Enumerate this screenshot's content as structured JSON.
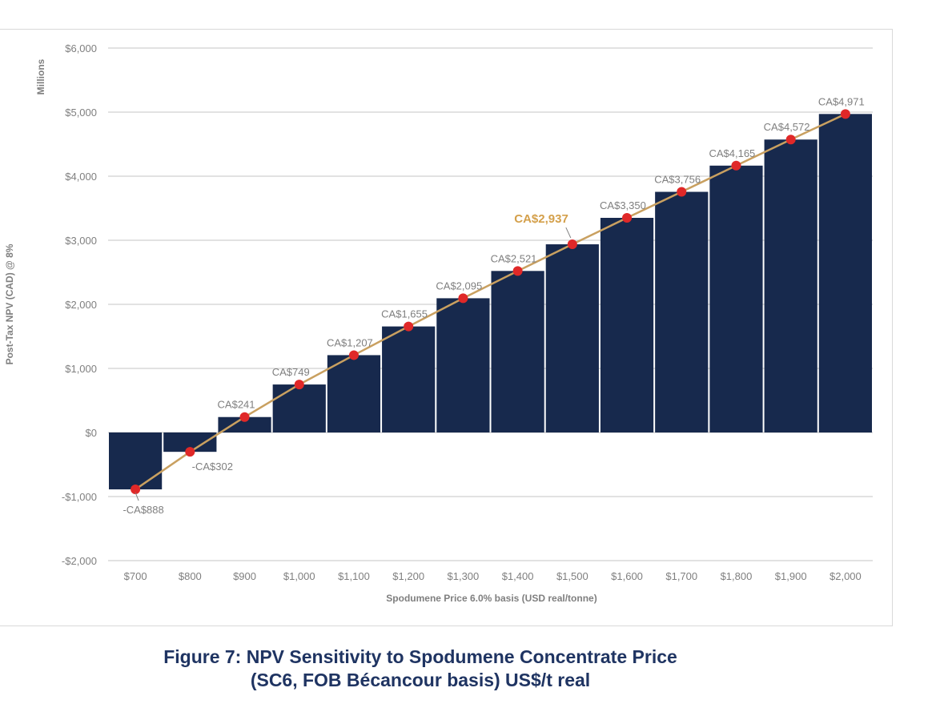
{
  "chart_data": {
    "type": "bar",
    "categories": [
      "$700",
      "$800",
      "$900",
      "$1,000",
      "$1,100",
      "$1,200",
      "$1,300",
      "$1,400",
      "$1,500",
      "$1,600",
      "$1,700",
      "$1,800",
      "$1,900",
      "$2,000"
    ],
    "values": [
      -888,
      -302,
      241,
      749,
      1207,
      1655,
      2095,
      2521,
      2937,
      3350,
      3756,
      4165,
      4572,
      4971
    ],
    "labels": [
      "-CA$888",
      "-CA$302",
      "CA$241",
      "CA$749",
      "CA$1,207",
      "CA$1,655",
      "CA$2,095",
      "CA$2,521",
      "CA$2,937",
      "CA$3,350",
      "CA$3,756",
      "CA$4,165",
      "CA$4,572",
      "CA$4,971"
    ],
    "highlight_index": 8,
    "yticks": [
      -2000,
      -1000,
      0,
      1000,
      2000,
      3000,
      4000,
      5000,
      6000
    ],
    "ytick_labels": [
      "-$2,000",
      "-$1,000",
      "$0",
      "$1,000",
      "$2,000",
      "$3,000",
      "$4,000",
      "$5,000",
      "$6,000"
    ],
    "ylim": [
      -2000,
      6000
    ],
    "ylabel": "Post-Tax NPV (CAD) @ 8%",
    "units_label": "Millions",
    "xlabel": "Spodumene Price 6.0% basis (USD real/tonne)",
    "grid": true,
    "colors": {
      "bar": "#17294d",
      "line": "#c9a060",
      "marker": "#e02828",
      "highlight": "#d4a04b",
      "grid": "#d9d9d9"
    }
  },
  "caption": {
    "line1": "Figure 7: NPV Sensitivity to Spodumene Concentrate Price",
    "line2": "(SC6, FOB Bécancour basis) US$/t real"
  }
}
